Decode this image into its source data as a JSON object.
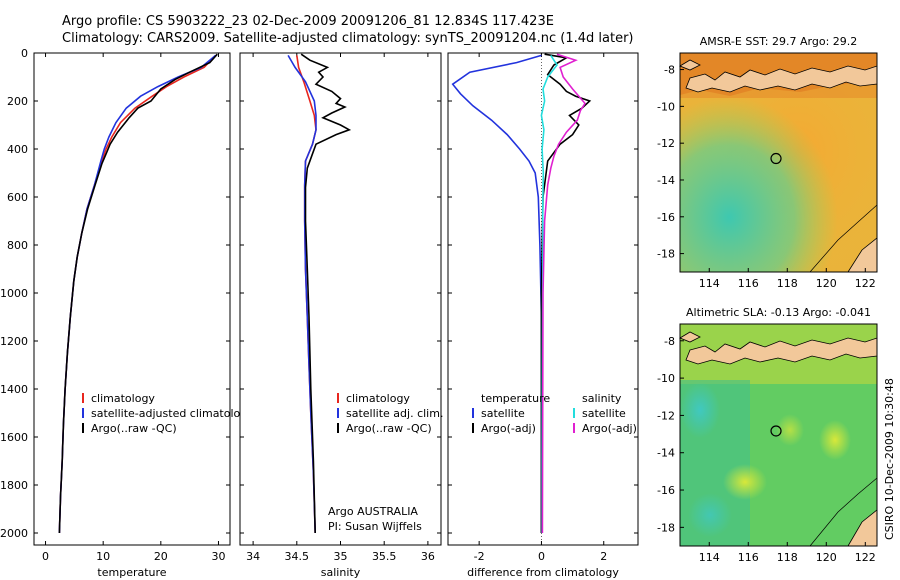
{
  "header": {
    "line1": "Argo profile: CS 5903222_23 02-Dec-2009 20091206_81 12.834S 117.423E",
    "line2": "Climatology: CARS2009. Satellite-adjusted climatology: synTS_20091204.nc (1.4d later)"
  },
  "colors": {
    "climatology": "#e8261e",
    "satellite": "#2233dd",
    "argo": "#000000",
    "sal_satellite": "#22dddd",
    "sal_argo": "#e020d0"
  },
  "depth_axis": {
    "ylim": [
      2050,
      0
    ],
    "ticks": [
      0,
      200,
      400,
      600,
      800,
      1000,
      1200,
      1400,
      1600,
      1800,
      2000
    ]
  },
  "chart_data": [
    {
      "id": "temperature",
      "type": "line",
      "xlabel": "temperature",
      "ylabel": "",
      "xlim": [
        -2,
        32
      ],
      "ylim": [
        2050,
        0
      ],
      "xticks": [
        0,
        10,
        20,
        30
      ],
      "xtick_labels": [
        "0",
        "10",
        "20",
        "30"
      ],
      "legend": [
        "climatology",
        "satellite-adjusted climatology",
        "Argo(..raw -QC)"
      ],
      "series": [
        {
          "name": "climatology",
          "color_key": "climatology",
          "x": [
            29.5,
            27.5,
            24,
            21,
            18.5,
            15.5,
            13,
            11.5,
            10.5,
            9.8,
            8.5,
            7.2,
            6.3,
            5.5,
            4.9,
            4.3,
            3.8,
            3.4,
            3.1,
            2.9,
            2.6,
            2.4
          ],
          "y": [
            10,
            60,
            100,
            140,
            180,
            230,
            290,
            350,
            400,
            450,
            550,
            650,
            750,
            850,
            950,
            1100,
            1250,
            1400,
            1550,
            1700,
            1850,
            2000
          ]
        },
        {
          "name": "satellite-adjusted climatology",
          "color_key": "satellite",
          "x": [
            29.5,
            27,
            23,
            19.5,
            16.5,
            14,
            12.2,
            11,
            10.2,
            9.6,
            8.5,
            7.2,
            6.3,
            5.5,
            4.9,
            4.3,
            3.8,
            3.4,
            3.1,
            2.9,
            2.6,
            2.4
          ],
          "y": [
            10,
            60,
            100,
            140,
            180,
            230,
            290,
            350,
            400,
            450,
            550,
            650,
            750,
            850,
            950,
            1100,
            1250,
            1400,
            1550,
            1700,
            1850,
            2000
          ]
        },
        {
          "name": "Argo(..raw -QC)",
          "color_key": "argo",
          "x": [
            29.8,
            28.5,
            25,
            22.5,
            20,
            18.3,
            16,
            14.5,
            12.5,
            11.2,
            10.5,
            9.8,
            8.6,
            7.3,
            6.3,
            5.5,
            4.9,
            4.3,
            3.8,
            3.4,
            3.1,
            2.9,
            2.6,
            2.4
          ],
          "y": [
            5,
            40,
            80,
            110,
            150,
            200,
            230,
            270,
            330,
            380,
            420,
            460,
            550,
            650,
            750,
            850,
            950,
            1100,
            1250,
            1400,
            1550,
            1700,
            1850,
            2000
          ]
        }
      ]
    },
    {
      "id": "salinity",
      "type": "line",
      "xlabel": "salinity",
      "xlim": [
        33.85,
        36.15
      ],
      "ylim": [
        2050,
        0
      ],
      "xticks": [
        34,
        34.5,
        35,
        35.5,
        36
      ],
      "xtick_labels": [
        "34",
        "34.5",
        "35",
        "35.5",
        "36"
      ],
      "legend": [
        "climatology",
        "satellite adj. clim.",
        "Argo(..raw -QC)"
      ],
      "footnote_1": "Argo AUSTRALIA",
      "footnote_2": "PI: Susan Wijffels",
      "series": [
        {
          "name": "climatology",
          "color_key": "climatology",
          "x": [
            34.5,
            34.52,
            34.58,
            34.65,
            34.7,
            34.72,
            34.68,
            34.6,
            34.59,
            34.59,
            34.6,
            34.62,
            34.64,
            34.66,
            34.69,
            34.71
          ],
          "y": [
            10,
            60,
            120,
            200,
            260,
            320,
            380,
            450,
            550,
            700,
            900,
            1100,
            1300,
            1500,
            1750,
            2000
          ]
        },
        {
          "name": "satellite adj. clim.",
          "color_key": "satellite",
          "x": [
            34.4,
            34.48,
            34.6,
            34.7,
            34.72,
            34.72,
            34.68,
            34.6,
            34.59,
            34.59,
            34.6,
            34.62,
            34.64,
            34.66,
            34.69,
            34.71
          ],
          "y": [
            10,
            60,
            120,
            200,
            260,
            320,
            380,
            450,
            550,
            700,
            900,
            1100,
            1300,
            1500,
            1750,
            2000
          ]
        },
        {
          "name": "Argo(..raw -QC)",
          "color_key": "argo",
          "x": [
            34.55,
            34.65,
            34.85,
            34.75,
            34.8,
            34.72,
            34.9,
            35.0,
            34.95,
            35.05,
            34.9,
            34.8,
            35.0,
            35.1,
            34.95,
            34.72,
            34.68,
            34.62,
            34.6,
            34.6,
            34.62,
            34.64,
            34.66,
            34.69,
            34.71
          ],
          "y": [
            5,
            30,
            60,
            80,
            100,
            130,
            160,
            190,
            210,
            225,
            250,
            270,
            300,
            320,
            340,
            380,
            420,
            480,
            560,
            700,
            900,
            1100,
            1400,
            1700,
            2000
          ]
        }
      ]
    },
    {
      "id": "difference",
      "type": "line",
      "xlabel": "difference from climatology",
      "xlim": [
        -3,
        3.1
      ],
      "ylim": [
        2050,
        0
      ],
      "xticks": [
        -2,
        0,
        2
      ],
      "xtick_labels": [
        "-2",
        "0",
        "2"
      ],
      "legend_temperature_title": "temperature",
      "legend_salinity_title": "salinity",
      "legend_temperature": [
        "satellite",
        "Argo(-adj)"
      ],
      "legend_salinity": [
        "satellite",
        "Argo(-adj)"
      ],
      "series": [
        {
          "name": "temperature satellite",
          "color_key": "satellite",
          "x": [
            0,
            -0.8,
            -2.3,
            -2.85,
            -2.6,
            -2.2,
            -1.6,
            -1.1,
            -0.7,
            -0.4,
            -0.2,
            -0.1,
            -0.05,
            0,
            0,
            0
          ],
          "y": [
            10,
            40,
            80,
            130,
            170,
            220,
            280,
            340,
            400,
            450,
            500,
            600,
            800,
            1100,
            1500,
            2000
          ]
        },
        {
          "name": "temperature Argo(-adj)",
          "color_key": "argo",
          "x": [
            0.1,
            0.8,
            0.4,
            0.2,
            0.6,
            0.8,
            1.1,
            1.55,
            1.3,
            0.9,
            1.2,
            1.0,
            0.6,
            0.2,
            0.05,
            0,
            0
          ],
          "y": [
            5,
            20,
            50,
            90,
            130,
            160,
            180,
            200,
            230,
            260,
            300,
            340,
            380,
            450,
            600,
            1000,
            2000
          ]
        },
        {
          "name": "salinity satellite",
          "color_key": "sal_satellite",
          "x": [
            0.3,
            0.5,
            0.2,
            0.05,
            0.1,
            0.0,
            0.08,
            0.02,
            0.06,
            0.04,
            0.05,
            0.04,
            0.03,
            0.02,
            0.02
          ],
          "y": [
            10,
            50,
            100,
            150,
            200,
            260,
            320,
            400,
            500,
            650,
            800,
            1000,
            1300,
            1700,
            2000
          ]
        },
        {
          "name": "salinity Argo(-adj)",
          "color_key": "sal_argo",
          "x": [
            0.5,
            1.1,
            0.6,
            0.7,
            1.0,
            1.4,
            1.25,
            1.15,
            0.8,
            0.55,
            0.4,
            0.3,
            0.2,
            0.1,
            0.05,
            0.03
          ],
          "y": [
            5,
            30,
            60,
            100,
            150,
            210,
            240,
            280,
            330,
            380,
            430,
            480,
            550,
            700,
            1000,
            2000
          ]
        }
      ]
    },
    {
      "id": "sst_map",
      "type": "heatmap",
      "title": "AMSR-E SST: 29.7 Argo: 29.2",
      "xlim": [
        112.5,
        122.6
      ],
      "ylim": [
        -19,
        -7.1
      ],
      "xticks": [
        114,
        116,
        118,
        120,
        122
      ],
      "yticks": [
        -8,
        -10,
        -12,
        -14,
        -16,
        -18
      ],
      "marker_lon": 117.423,
      "marker_lat": -12.834
    },
    {
      "id": "sla_map",
      "type": "heatmap",
      "title": "Altimetric SLA: -0.13 Argo: -0.041",
      "xlim": [
        112.5,
        122.6
      ],
      "ylim": [
        -19,
        -7.1
      ],
      "xticks": [
        114,
        116,
        118,
        120,
        122
      ],
      "yticks": [
        -8,
        -10,
        -12,
        -14,
        -16,
        -18
      ],
      "marker_lon": 117.423,
      "marker_lat": -12.834
    }
  ],
  "credit": "CSIRO 10-Dec-2009 10:30:48"
}
